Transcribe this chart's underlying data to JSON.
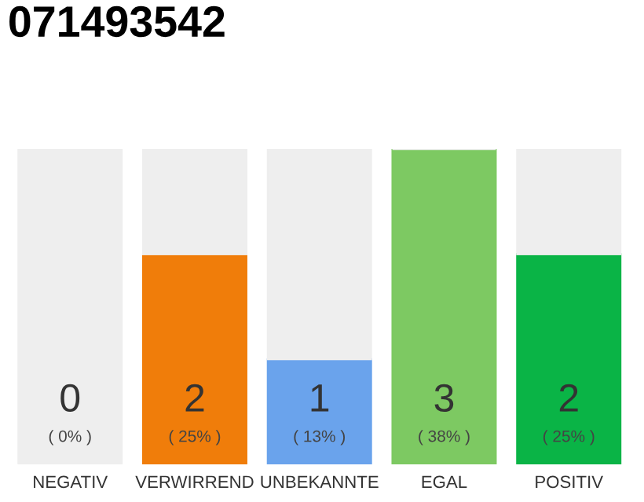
{
  "chart_data": {
    "type": "bar",
    "title": "071493542",
    "categories": [
      "NEGATIV",
      "VERWIRREND",
      "UNBEKANNTE",
      "EGAL",
      "POSITIV"
    ],
    "stacked": true,
    "series": [
      {
        "colors": [
          "#555555",
          "#f07d0a",
          "#6aa3ec",
          "#7dc962",
          "#0ab446"
        ],
        "values": [
          0,
          2,
          1,
          3,
          2
        ],
        "value_labels": [
          "0\n( 0% )",
          "2\n( 25% )",
          "1\n( 13% )",
          "3\n( 38% )",
          "2\n( 25% )"
        ]
      },
      {
        "color": "#eeeeee",
        "values": [
          3,
          1,
          2,
          0,
          1
        ]
      }
    ],
    "grid": false
  }
}
